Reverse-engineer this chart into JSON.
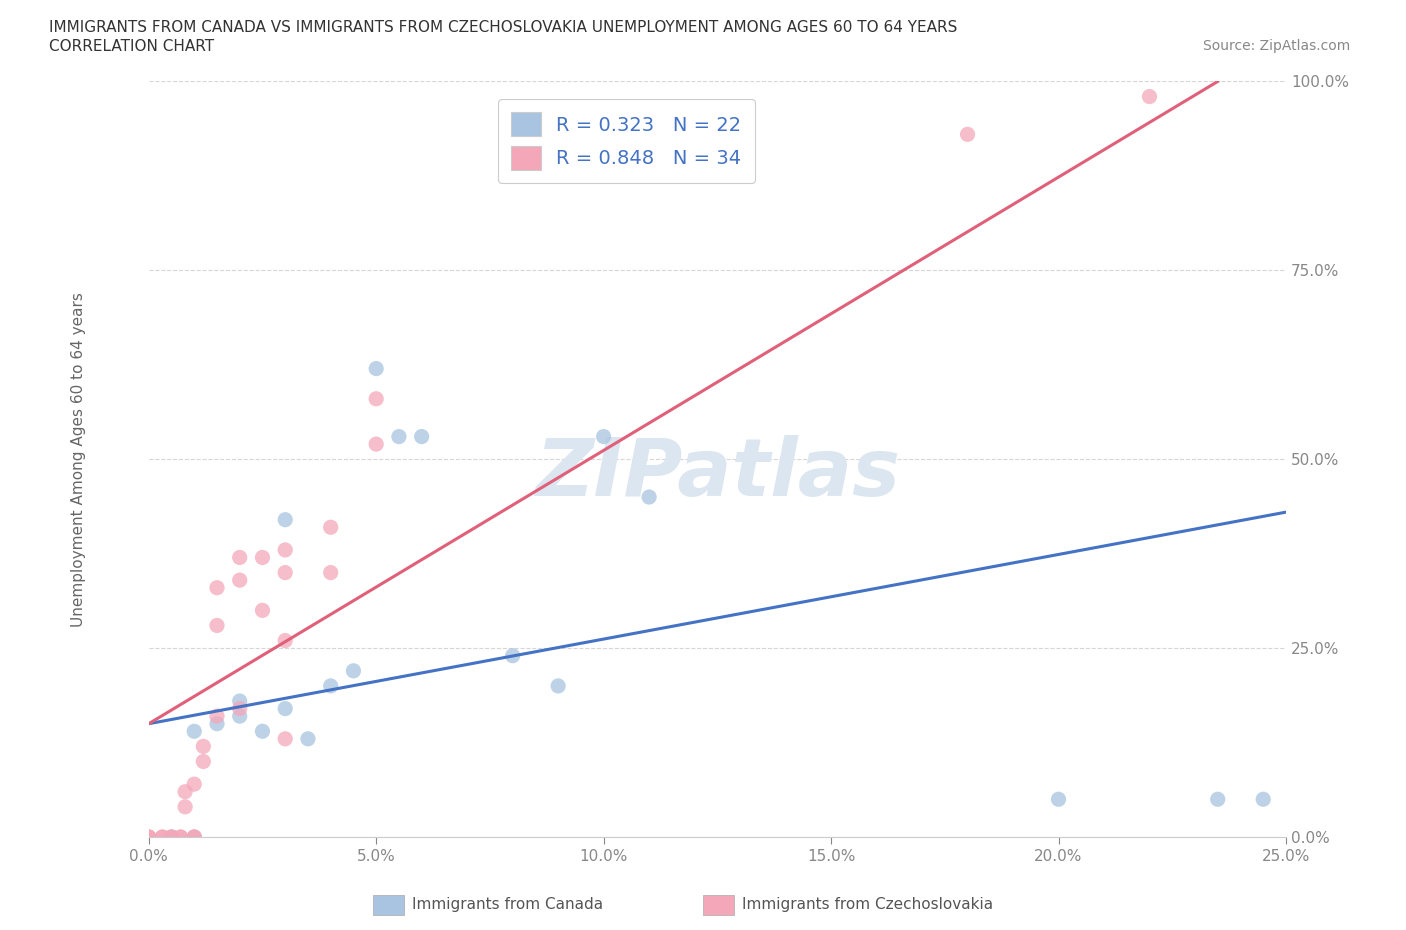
{
  "title_line1": "IMMIGRANTS FROM CANADA VS IMMIGRANTS FROM CZECHOSLOVAKIA UNEMPLOYMENT AMONG AGES 60 TO 64 YEARS",
  "title_line2": "CORRELATION CHART",
  "source_text": "Source: ZipAtlas.com",
  "ylabel": "Unemployment Among Ages 60 to 64 years",
  "background_color": "#ffffff",
  "plot_bg_color": "#ffffff",
  "canada_color": "#a8c4e0",
  "canada_line_color": "#4472c4",
  "czechoslovakia_color": "#f4a7b9",
  "czechoslovakia_line_color": "#e0607a",
  "watermark_color": "#dce6f0",
  "canada_R": 0.323,
  "canada_N": 22,
  "czechoslovakia_R": 0.848,
  "czechoslovakia_N": 34,
  "xlim": [
    0.0,
    0.25
  ],
  "ylim": [
    0.0,
    1.0
  ],
  "xticks": [
    0.0,
    0.05,
    0.1,
    0.15,
    0.2,
    0.25
  ],
  "yticks": [
    0.0,
    0.25,
    0.5,
    0.75,
    1.0
  ],
  "xticklabels": [
    "0.0%",
    "5.0%",
    "10.0%",
    "15.0%",
    "20.0%",
    "25.0%"
  ],
  "yticklabels": [
    "0.0%",
    "25.0%",
    "50.0%",
    "75.0%",
    "100.0%"
  ],
  "canada_scatter_x": [
    0.005,
    0.01,
    0.01,
    0.015,
    0.02,
    0.02,
    0.025,
    0.03,
    0.03,
    0.035,
    0.04,
    0.045,
    0.05,
    0.055,
    0.06,
    0.08,
    0.09,
    0.1,
    0.11,
    0.2,
    0.235,
    0.245
  ],
  "canada_scatter_y": [
    0.0,
    0.0,
    0.14,
    0.15,
    0.16,
    0.18,
    0.14,
    0.17,
    0.42,
    0.13,
    0.2,
    0.22,
    0.62,
    0.53,
    0.53,
    0.24,
    0.2,
    0.53,
    0.45,
    0.05,
    0.05,
    0.05
  ],
  "czechoslovakia_scatter_x": [
    0.0,
    0.0,
    0.0,
    0.003,
    0.003,
    0.005,
    0.005,
    0.007,
    0.007,
    0.008,
    0.008,
    0.01,
    0.01,
    0.01,
    0.012,
    0.012,
    0.015,
    0.015,
    0.015,
    0.02,
    0.02,
    0.02,
    0.025,
    0.025,
    0.03,
    0.03,
    0.03,
    0.03,
    0.04,
    0.04,
    0.05,
    0.05,
    0.18,
    0.22
  ],
  "czechoslovakia_scatter_y": [
    0.0,
    0.0,
    0.0,
    0.0,
    0.0,
    0.0,
    0.0,
    0.0,
    0.0,
    0.04,
    0.06,
    0.0,
    0.0,
    0.07,
    0.1,
    0.12,
    0.16,
    0.28,
    0.33,
    0.34,
    0.37,
    0.17,
    0.3,
    0.37,
    0.35,
    0.38,
    0.13,
    0.26,
    0.35,
    0.41,
    0.52,
    0.58,
    0.93,
    0.98
  ],
  "canada_line_x0": 0.0,
  "canada_line_x1": 0.25,
  "canada_line_y0": 0.15,
  "canada_line_y1": 0.43,
  "czech_line_x0": 0.0,
  "czech_line_x1": 0.235,
  "czech_line_y0": 0.15,
  "czech_line_y1": 1.0
}
